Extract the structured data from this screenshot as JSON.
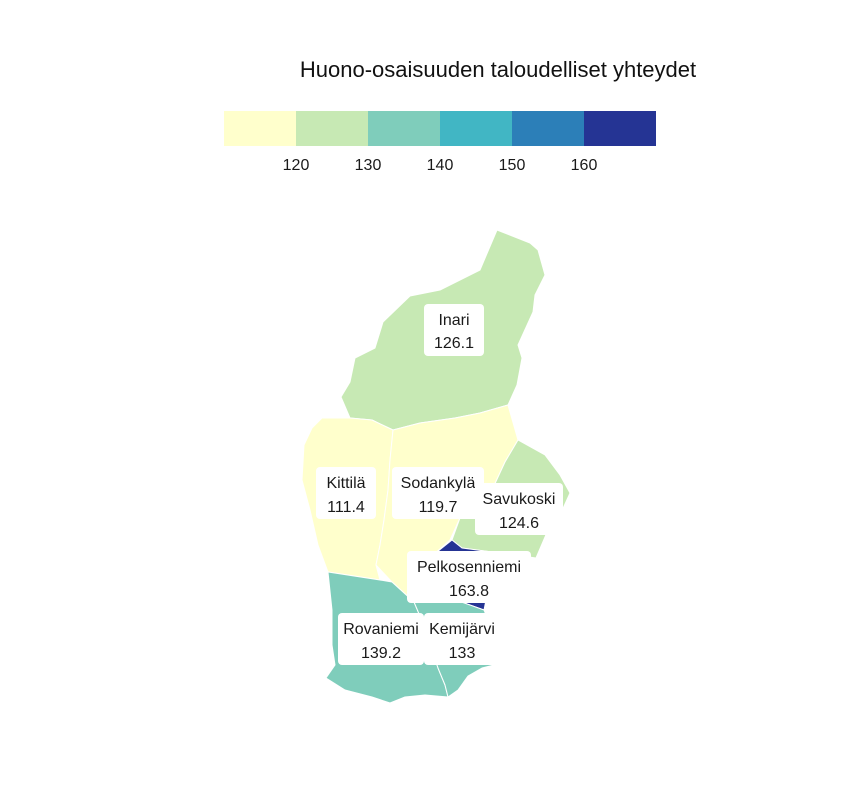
{
  "title": "Huono-osaisuuden taloudelliset yhteydet",
  "legend": {
    "colors": [
      "#ffffcc",
      "#c7e9b4",
      "#7fcdbb",
      "#41b6c4",
      "#2c7fb8",
      "#253494"
    ],
    "ticks": [
      "120",
      "130",
      "140",
      "150",
      "160"
    ]
  },
  "chart_data": {
    "type": "choropleth",
    "title": "Huono-osaisuuden taloudelliset yhteydet",
    "color_scale": {
      "breaks": [
        120,
        130,
        140,
        150,
        160
      ],
      "colors": [
        "#ffffcc",
        "#c7e9b4",
        "#7fcdbb",
        "#41b6c4",
        "#2c7fb8",
        "#253494"
      ]
    },
    "regions": [
      {
        "id": "inari",
        "name": "Inari",
        "value": 126.1,
        "display": "126.1"
      },
      {
        "id": "kittila",
        "name": "Kittilä",
        "value": 111.4,
        "display": "111.4"
      },
      {
        "id": "sodankyla",
        "name": "Sodankylä",
        "value": 119.7,
        "display": "119.7"
      },
      {
        "id": "savukoski",
        "name": "Savukoski",
        "value": 124.6,
        "display": "124.6"
      },
      {
        "id": "pelkosenniemi",
        "name": "Pelkosenniemi",
        "value": 163.8,
        "display": "163.8"
      },
      {
        "id": "rovaniemi",
        "name": "Rovaniemi",
        "value": 139.2,
        "display": "139.2"
      },
      {
        "id": "kemijarvi",
        "name": "Kemijärvi",
        "value": 133,
        "display": "133"
      }
    ]
  }
}
